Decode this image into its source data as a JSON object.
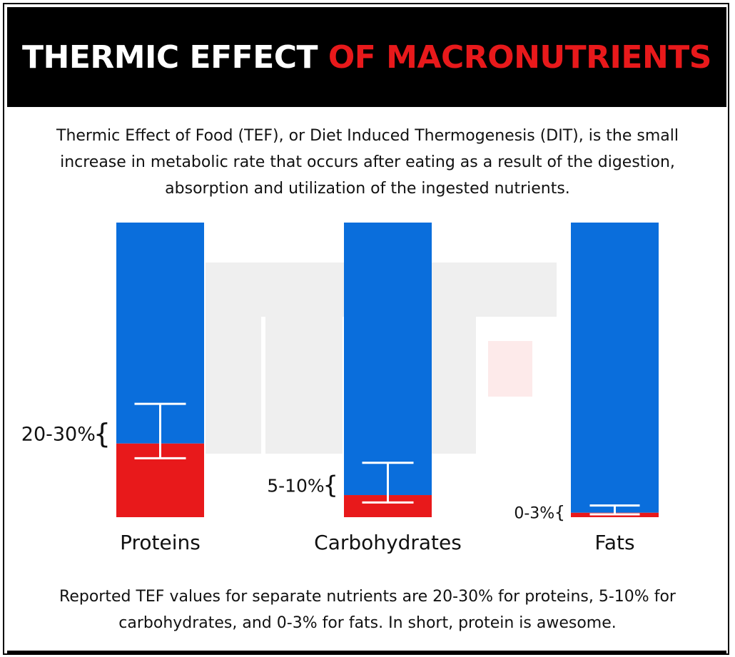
{
  "header": {
    "title_white": "THERMIC EFFECT",
    "title_red": "OF MACRONUTRIENTS"
  },
  "intro": "Thermic Effect of Food (TEF), or Diet Induced Thermogenesis (DIT), is the small increase in metabolic rate that occurs after eating as a result of the digestion, absorption and utilization of the ingested nutrients.",
  "footnote": "Reported TEF values for separate nutrients are 20-30% for proteins, 5-10% for carbohydrates, and 0-3% for fats. In short, protein is awesome.",
  "colors": {
    "bar_total": "#0a6edc",
    "bar_tef": "#e8191b",
    "header_bg": "#000000",
    "accent": "#e8191b"
  },
  "chart_data": {
    "type": "bar",
    "stacked": true,
    "categories": [
      "Proteins",
      "Carbohydrates",
      "Fats"
    ],
    "ylim": [
      0,
      100
    ],
    "series": [
      {
        "values": [
          25,
          7.5,
          1.5
        ]
      },
      {
        "values": [
          75,
          92.5,
          98.5
        ]
      }
    ],
    "ranges": [
      {
        "label": "20-30%",
        "low": 20,
        "high": 30
      },
      {
        "label": "5-10%",
        "low": 5,
        "high": 10
      },
      {
        "label": "0-3%",
        "low": 0,
        "high": 3
      }
    ],
    "grid": false,
    "legend": "none"
  }
}
